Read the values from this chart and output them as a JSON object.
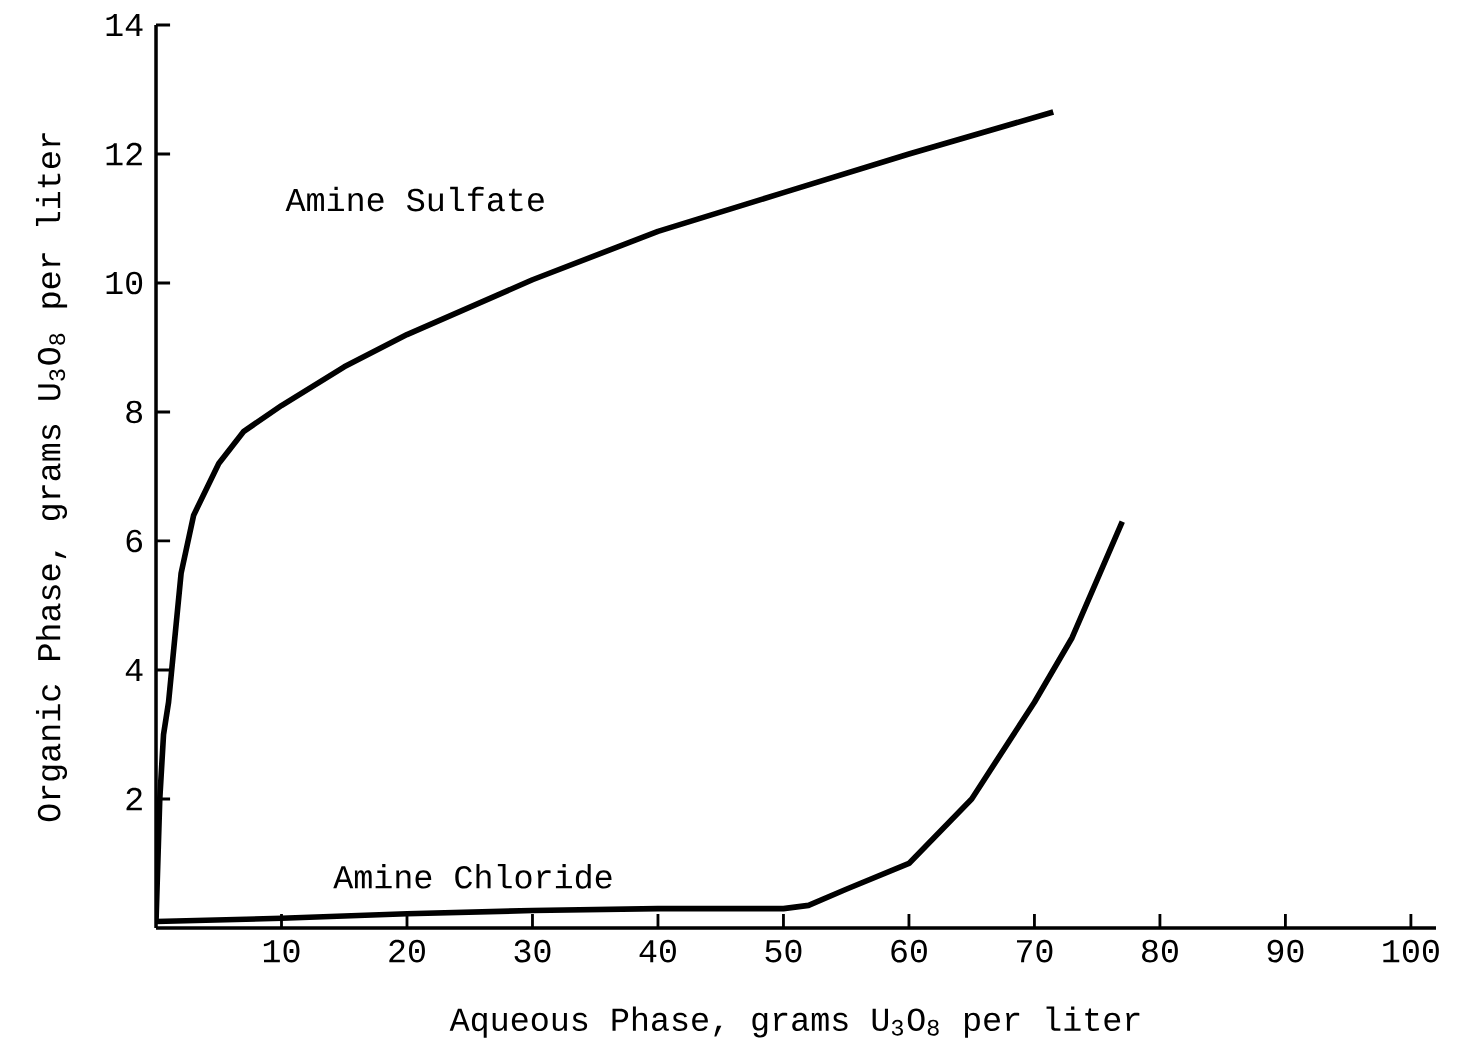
{
  "chart_data": {
    "type": "line",
    "xlabel": "Aqueous Phase, grams U$_{3}$O$_{8}$ per liter",
    "ylabel": "Organic Phase, grams U$_{3}$O$_{8}$ per liter",
    "xlim": [
      0,
      102
    ],
    "ylim": [
      0,
      14
    ],
    "xticks": [
      10,
      20,
      30,
      40,
      50,
      60,
      70,
      80,
      90,
      100
    ],
    "yticks": [
      2,
      4,
      6,
      8,
      10,
      12,
      14
    ],
    "grid": false,
    "legend": false,
    "marker": "none",
    "line_style": "solid",
    "series": [
      {
        "name": "Amine Sulfate",
        "color": "#000000",
        "x": [
          0,
          0.3,
          0.6,
          1,
          2,
          3,
          5,
          7,
          10,
          15,
          20,
          30,
          40,
          50,
          60,
          71.5
        ],
        "values": [
          0.1,
          2,
          3,
          3.5,
          5.5,
          6.4,
          7.2,
          7.7,
          8.1,
          8.7,
          9.2,
          10.05,
          10.8,
          11.4,
          12.0,
          12.65
        ]
      },
      {
        "name": "Amine Chloride",
        "color": "#000000",
        "x": [
          0,
          10,
          20,
          30,
          40,
          50,
          52,
          55,
          60,
          65,
          70,
          73,
          77
        ],
        "values": [
          0.1,
          0.15,
          0.22,
          0.27,
          0.3,
          0.3,
          0.35,
          0.6,
          1.0,
          2.0,
          3.5,
          4.5,
          6.3
        ]
      }
    ]
  }
}
